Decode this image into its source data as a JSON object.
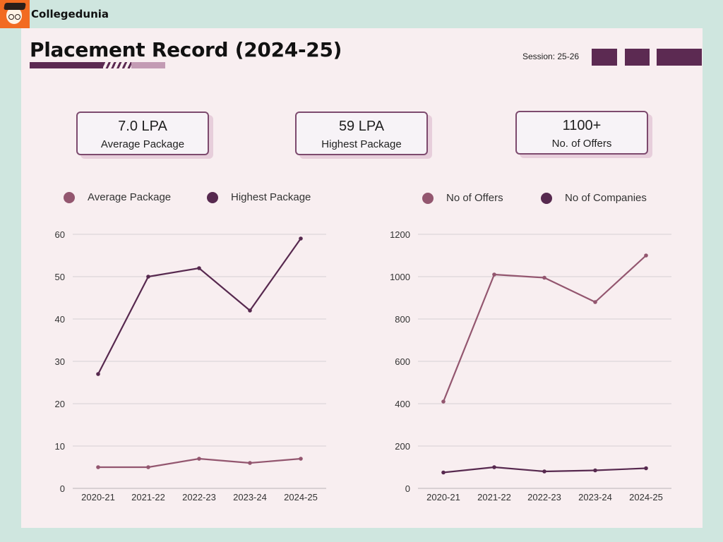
{
  "brand": {
    "name": "Collegedunia"
  },
  "header": {
    "title": "Placement Record (2024-25)",
    "session": "Session: 25-26"
  },
  "colors": {
    "light_series": "#93566f",
    "dark_series": "#57294f",
    "accent": "#5c2a52"
  },
  "stats": [
    {
      "value": "7.0 LPA",
      "label": "Average Package"
    },
    {
      "value": "59 LPA",
      "label": "Highest Package"
    },
    {
      "value": "1100+",
      "label": "No. of Offers"
    }
  ],
  "chart_data": [
    {
      "type": "line",
      "categories": [
        "2020-21",
        "2021-22",
        "2022-23",
        "2023-24",
        "2024-25"
      ],
      "series": [
        {
          "name": "Average Package",
          "values": [
            5,
            5,
            7,
            6,
            7
          ],
          "color": "#93566f"
        },
        {
          "name": "Highest Package",
          "values": [
            27,
            50,
            52,
            42,
            59
          ],
          "color": "#57294f"
        }
      ],
      "yticks": [
        "0",
        "10",
        "20",
        "30",
        "40",
        "50",
        "60"
      ],
      "ylim": [
        0,
        60
      ],
      "grid": true,
      "legend": "top"
    },
    {
      "type": "line",
      "categories": [
        "2020-21",
        "2021-22",
        "2022-23",
        "2023-24",
        "2024-25"
      ],
      "series": [
        {
          "name": "No of Offers",
          "values": [
            410,
            1010,
            995,
            880,
            1100
          ],
          "color": "#93566f"
        },
        {
          "name": "No of Companies",
          "values": [
            75,
            100,
            80,
            85,
            95
          ],
          "color": "#57294f"
        }
      ],
      "yticks": [
        "0",
        "200",
        "400",
        "600",
        "800",
        "1000",
        "1200"
      ],
      "ylim": [
        0,
        1200
      ],
      "grid": true,
      "legend": "top"
    }
  ]
}
